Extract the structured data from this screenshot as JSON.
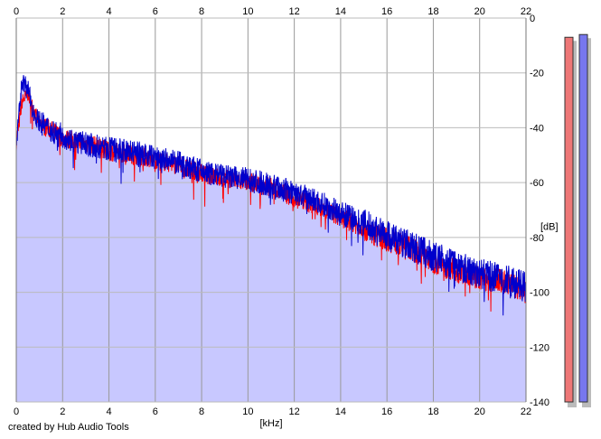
{
  "chart_data": {
    "type": "area",
    "xlabel": "[kHz]",
    "ylabel": "[dB]",
    "xlim": [
      0,
      22
    ],
    "ylim": [
      -140,
      0
    ],
    "x_ticks": [
      "0",
      "2",
      "4",
      "6",
      "8",
      "10",
      "12",
      "14",
      "16",
      "18",
      "20",
      "22"
    ],
    "y_ticks": [
      "0",
      "-20",
      "-40",
      "-60",
      "-80",
      "-100",
      "-120",
      "-140"
    ],
    "grid": true,
    "series": [
      {
        "color": "#ff0000",
        "x": [
          0,
          0.25,
          0.5,
          0.75,
          1.0,
          1.5,
          2.0,
          2.5,
          3.0,
          3.5,
          4.0,
          5.0,
          6.0,
          7.0,
          8.0,
          9.0,
          10.0,
          11.0,
          12.0,
          13.0,
          14.0,
          15.0,
          16.0,
          17.0,
          18.0,
          19.0,
          20.0,
          21.0,
          22.0
        ],
        "values": [
          -45,
          -30,
          -27,
          -33,
          -38,
          -40,
          -43,
          -44,
          -45,
          -46,
          -48,
          -49,
          -51,
          -53,
          -56,
          -58,
          -59,
          -61,
          -65,
          -68,
          -72,
          -76,
          -80,
          -83,
          -88,
          -91,
          -94,
          -95,
          -99
        ]
      },
      {
        "color": "#0000cc",
        "x": [
          0,
          0.25,
          0.5,
          0.75,
          1.0,
          1.5,
          2.0,
          2.5,
          3.0,
          3.5,
          4.0,
          5.0,
          6.0,
          7.0,
          8.0,
          9.0,
          10.0,
          11.0,
          12.0,
          13.0,
          14.0,
          15.0,
          16.0,
          17.0,
          18.0,
          19.0,
          20.0,
          21.0,
          22.0
        ],
        "values": [
          -46,
          -22,
          -25,
          -34,
          -37,
          -40,
          -42,
          -44,
          -45,
          -46,
          -47,
          -48,
          -50,
          -52,
          -55,
          -57,
          -58,
          -60,
          -63,
          -66,
          -70,
          -74,
          -78,
          -82,
          -86,
          -89,
          -92,
          -94,
          -97
        ]
      }
    ],
    "fill_color": "#c8c8ff",
    "meters": [
      {
        "channel": "left",
        "color": "#ee7777",
        "level_db": -7
      },
      {
        "channel": "right",
        "color": "#7777ee",
        "level_db": -6
      }
    ]
  },
  "footer": {
    "credit": "created by Hub Audio Tools"
  }
}
